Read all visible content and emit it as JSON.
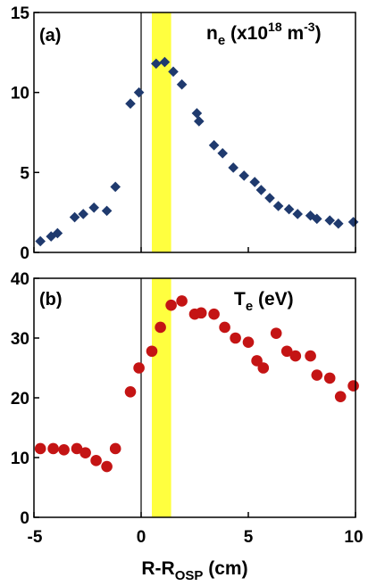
{
  "chart_data": [
    {
      "type": "scatter",
      "panel_label": "(a)",
      "quantity": {
        "main": "n",
        "sub": "e",
        "prefix": " (x10",
        "sup": "18",
        "mid": " m",
        "sup2": "-3",
        "suffix": ")"
      },
      "xlim": [
        -5,
        10
      ],
      "ylim": [
        0,
        15
      ],
      "yticks": [
        "0",
        "5",
        "10",
        "15"
      ],
      "yticks_values": [
        0,
        5,
        10,
        15
      ],
      "marker": "diamond",
      "color": "#1f3a6e",
      "x": [
        -4.7,
        -4.2,
        -3.9,
        -3.1,
        -2.7,
        -2.2,
        -1.6,
        -1.2,
        -0.5,
        -0.1,
        0.7,
        1.1,
        1.5,
        1.9,
        2.6,
        2.7,
        3.4,
        3.8,
        4.3,
        4.8,
        5.3,
        5.6,
        6.0,
        6.4,
        6.9,
        7.3,
        7.9,
        8.2,
        8.8,
        9.2,
        9.9
      ],
      "y": [
        0.7,
        1.0,
        1.2,
        2.2,
        2.4,
        2.8,
        2.6,
        4.1,
        9.3,
        10.0,
        11.8,
        11.9,
        11.3,
        10.5,
        8.7,
        8.2,
        6.7,
        6.2,
        5.3,
        4.8,
        4.4,
        3.9,
        3.4,
        2.9,
        2.7,
        2.4,
        2.3,
        2.1,
        2.0,
        1.8,
        1.9
      ]
    },
    {
      "type": "scatter",
      "panel_label": "(b)",
      "quantity": {
        "main": "T",
        "sub": "e",
        "suffix": " (eV)"
      },
      "xlim": [
        -5,
        10
      ],
      "ylim": [
        0,
        40
      ],
      "yticks": [
        "0",
        "10",
        "20",
        "30",
        "40"
      ],
      "yticks_values": [
        0,
        10,
        20,
        30,
        40
      ],
      "xticks": [
        "-5",
        "0",
        "5",
        "10"
      ],
      "xticks_values": [
        -5,
        0,
        5,
        10
      ],
      "xlabel": {
        "main": "R-R",
        "sub": "OSP",
        "suffix": " (cm)"
      },
      "marker": "circle",
      "color": "#c41414",
      "x": [
        -4.7,
        -4.1,
        -3.6,
        -3.0,
        -2.6,
        -2.1,
        -1.6,
        -1.2,
        -0.5,
        -0.1,
        0.5,
        0.9,
        1.4,
        1.9,
        2.5,
        2.8,
        3.4,
        3.9,
        4.4,
        5.0,
        5.4,
        5.7,
        6.3,
        6.8,
        7.2,
        7.9,
        8.2,
        8.8,
        9.3,
        9.9
      ],
      "y": [
        11.5,
        11.5,
        11.3,
        11.5,
        10.8,
        9.5,
        8.5,
        11.5,
        21.0,
        25.0,
        27.8,
        31.8,
        35.5,
        36.2,
        34.0,
        34.2,
        34.0,
        31.8,
        30.0,
        29.3,
        26.2,
        25.0,
        30.8,
        27.8,
        27.0,
        27.0,
        23.8,
        23.3,
        20.2,
        22.0
      ]
    }
  ],
  "highlight_band": {
    "x_range": [
      0.5,
      1.4
    ],
    "color": "#ffff3f"
  },
  "colors": {
    "frame": "#000000",
    "band": "#ffff3f",
    "diamond": "#1f3a6e",
    "circle": "#c41414"
  }
}
